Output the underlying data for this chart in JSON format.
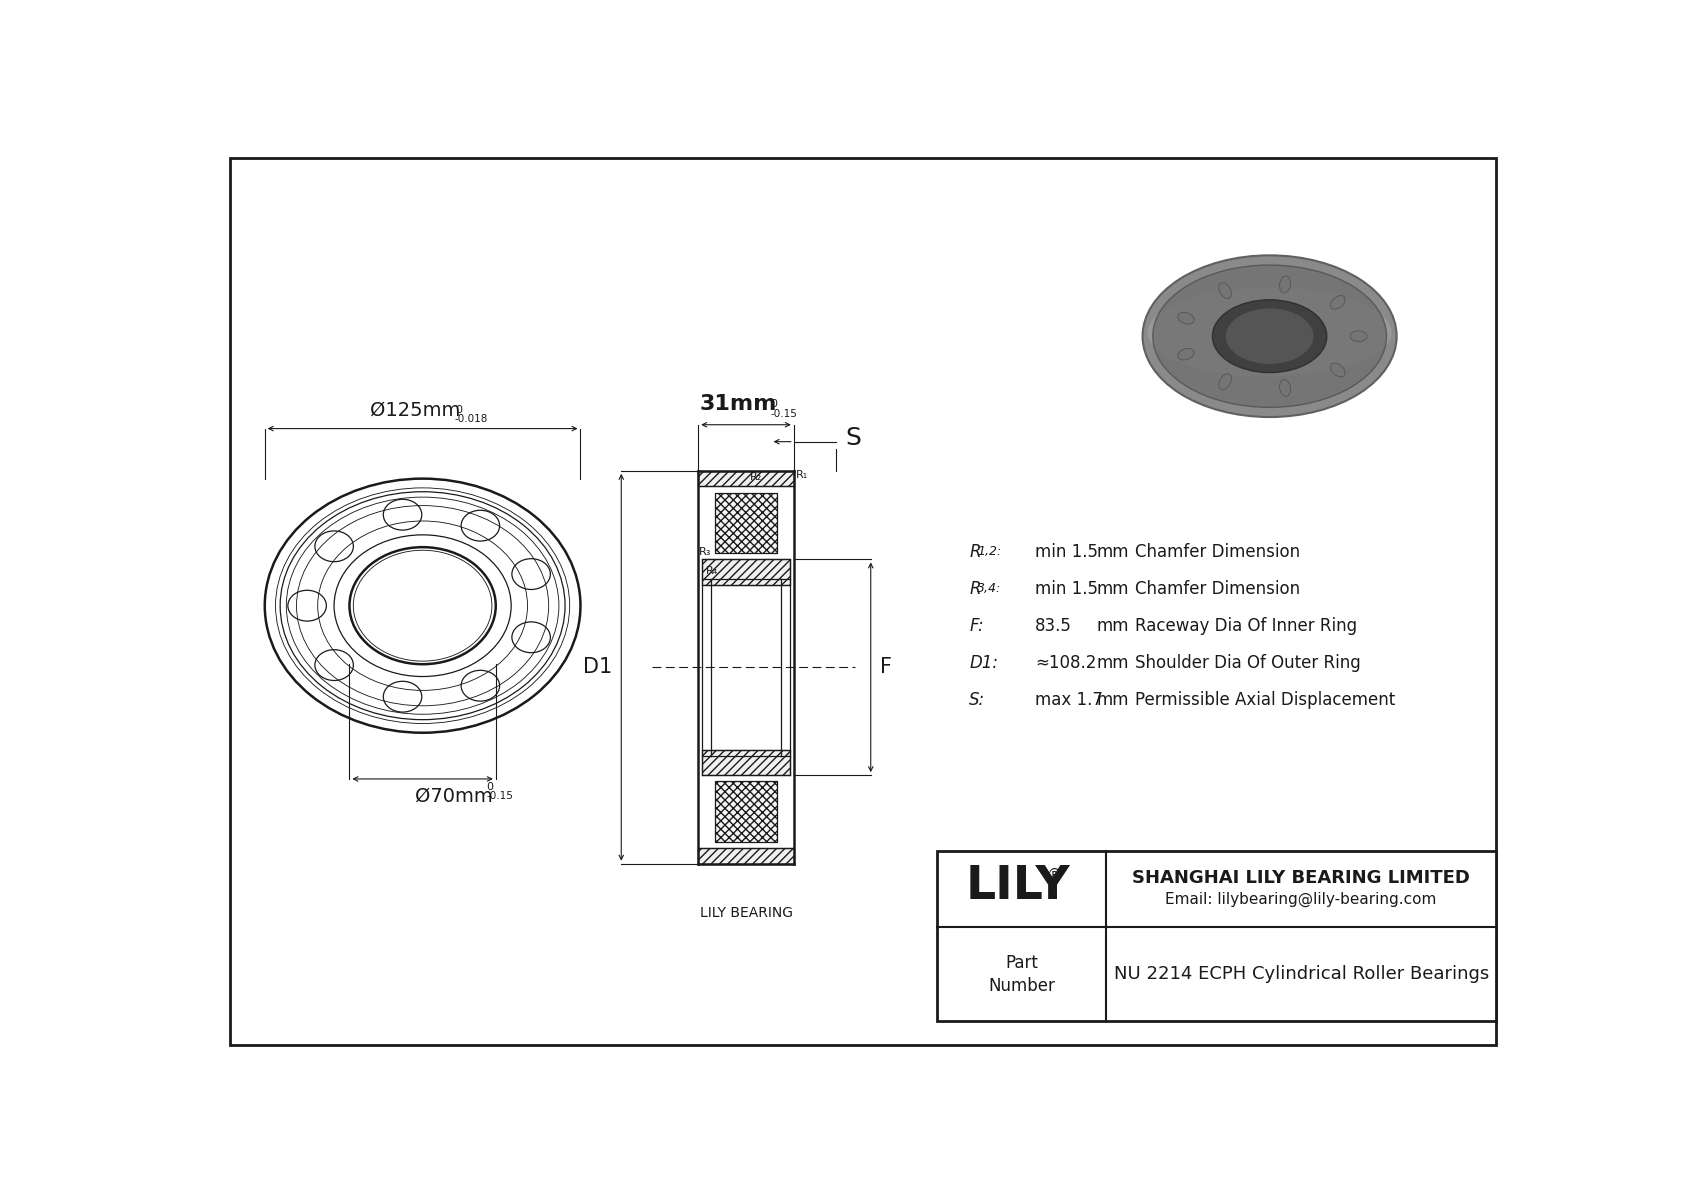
{
  "bg_color": "#ffffff",
  "line_color": "#1a1a1a",
  "title_box": {
    "company": "SHANGHAI LILY BEARING LIMITED",
    "email": "Email: lilybearing@lily-bearing.com",
    "brand": "LILY",
    "part_label": "Part\nNumber",
    "part_number": "NU 2214 ECPH Cylindrical Roller Bearings"
  },
  "specs": [
    {
      "label": "R1,2:",
      "value": "min 1.5",
      "unit": "mm",
      "desc": "Chamfer Dimension"
    },
    {
      "label": "R3,4:",
      "value": "min 1.5",
      "unit": "mm",
      "desc": "Chamfer Dimension"
    },
    {
      "label": "F:",
      "value": "83.5",
      "unit": "mm",
      "desc": "Raceway Dia Of Inner Ring"
    },
    {
      "label": "D1:",
      "value": "≈108.2",
      "unit": "mm",
      "desc": "Shoulder Dia Of Outer Ring"
    },
    {
      "label": "S:",
      "value": "max 1.7",
      "unit": "mm",
      "desc": "Permissible Axial Displacement"
    }
  ],
  "label_lily_bearing": "LILY BEARING"
}
